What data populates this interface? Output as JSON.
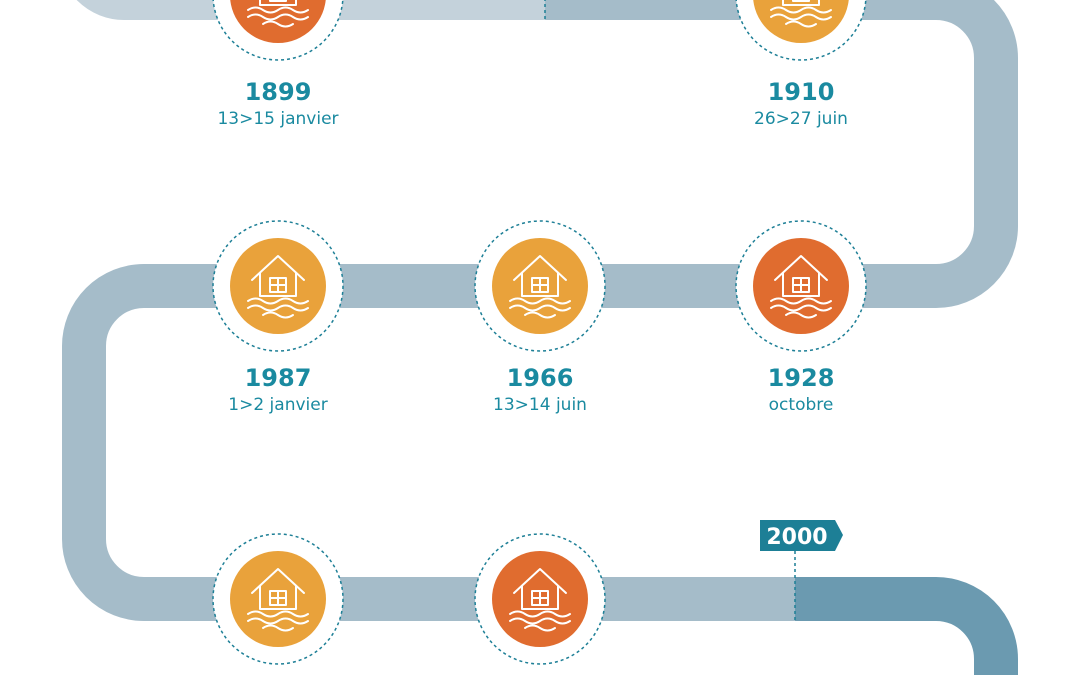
{
  "events": [
    {
      "year": "1899",
      "date": "13>15 janvier"
    },
    {
      "year": "1910",
      "date": "26>27 juin"
    },
    {
      "year": "1987",
      "date": "1>2 janvier"
    },
    {
      "year": "1966",
      "date": "13>14 juin"
    },
    {
      "year": "1928",
      "date": "octobre"
    }
  ],
  "marker": "2000"
}
